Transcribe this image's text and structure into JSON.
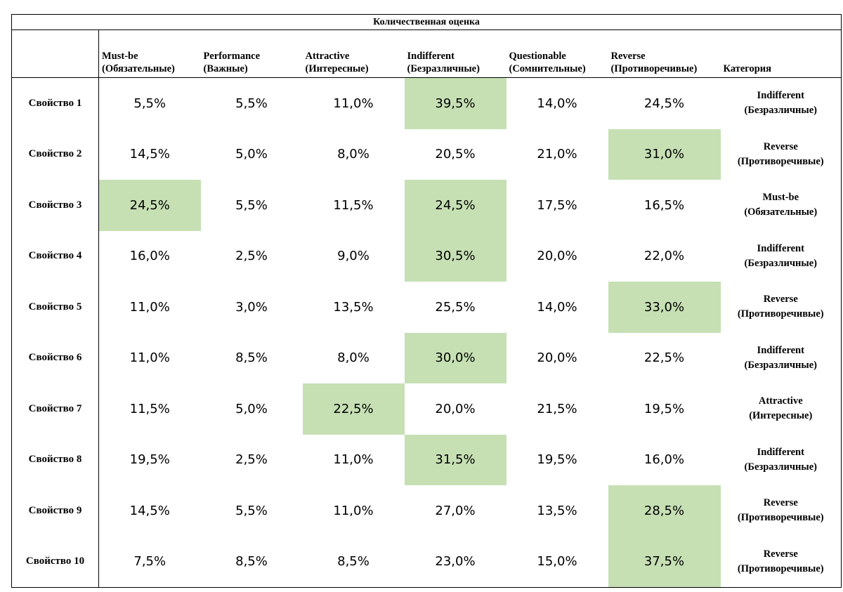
{
  "title": "Количественная оценка",
  "columns": [
    {
      "line1": "Must-be",
      "line2": "(Обязательные)"
    },
    {
      "line1": "Performance",
      "line2": "(Важные)"
    },
    {
      "line1": "Attractive",
      "line2": "(Интересные)"
    },
    {
      "line1": "Indifferent",
      "line2": "(Безразличные)"
    },
    {
      "line1": "Questionable",
      "line2": "(Сомнительные)"
    },
    {
      "line1": "Reverse",
      "line2": "(Противоречивые)"
    }
  ],
  "category_header": "Категория",
  "highlight_color": "#c6e0b4",
  "rows": [
    {
      "label": "Свойство 1",
      "values": [
        "5,5%",
        "5,5%",
        "11,0%",
        "39,5%",
        "14,0%",
        "24,5%"
      ],
      "highlight": [
        3
      ],
      "category": {
        "line1": "Indifferent",
        "line2": "(Безразличные)"
      }
    },
    {
      "label": "Свойство 2",
      "values": [
        "14,5%",
        "5,0%",
        "8,0%",
        "20,5%",
        "21,0%",
        "31,0%"
      ],
      "highlight": [
        5
      ],
      "category": {
        "line1": "Reverse",
        "line2": "(Противоречивые)"
      }
    },
    {
      "label": "Свойство 3",
      "values": [
        "24,5%",
        "5,5%",
        "11,5%",
        "24,5%",
        "17,5%",
        "16,5%"
      ],
      "highlight": [
        0,
        3
      ],
      "category": {
        "line1": "Must-be",
        "line2": "(Обязательные)"
      }
    },
    {
      "label": "Свойство 4",
      "values": [
        "16,0%",
        "2,5%",
        "9,0%",
        "30,5%",
        "20,0%",
        "22,0%"
      ],
      "highlight": [
        3
      ],
      "category": {
        "line1": "Indifferent",
        "line2": "(Безразличные)"
      }
    },
    {
      "label": "Свойство 5",
      "values": [
        "11,0%",
        "3,0%",
        "13,5%",
        "25,5%",
        "14,0%",
        "33,0%"
      ],
      "highlight": [
        5
      ],
      "category": {
        "line1": "Reverse",
        "line2": "(Противоречивые)"
      }
    },
    {
      "label": "Свойство 6",
      "values": [
        "11,0%",
        "8,5%",
        "8,0%",
        "30,0%",
        "20,0%",
        "22,5%"
      ],
      "highlight": [
        3
      ],
      "category": {
        "line1": "Indifferent",
        "line2": "(Безразличные)"
      }
    },
    {
      "label": "Свойство 7",
      "values": [
        "11,5%",
        "5,0%",
        "22,5%",
        "20,0%",
        "21,5%",
        "19,5%"
      ],
      "highlight": [
        2
      ],
      "category": {
        "line1": "Attractive",
        "line2": "(Интересные)"
      }
    },
    {
      "label": "Свойство 8",
      "values": [
        "19,5%",
        "2,5%",
        "11,0%",
        "31,5%",
        "19,5%",
        "16,0%"
      ],
      "highlight": [
        3
      ],
      "category": {
        "line1": "Indifferent",
        "line2": "(Безразличные)"
      }
    },
    {
      "label": "Свойство 9",
      "values": [
        "14,5%",
        "5,5%",
        "11,0%",
        "27,0%",
        "13,5%",
        "28,5%"
      ],
      "highlight": [
        5
      ],
      "category": {
        "line1": "Reverse",
        "line2": "(Противоречивые)"
      }
    },
    {
      "label": "Свойство 10",
      "values": [
        "7,5%",
        "8,5%",
        "8,5%",
        "23,0%",
        "15,0%",
        "37,5%"
      ],
      "highlight": [
        5
      ],
      "category": {
        "line1": "Reverse",
        "line2": "(Противоречивые)"
      }
    }
  ]
}
